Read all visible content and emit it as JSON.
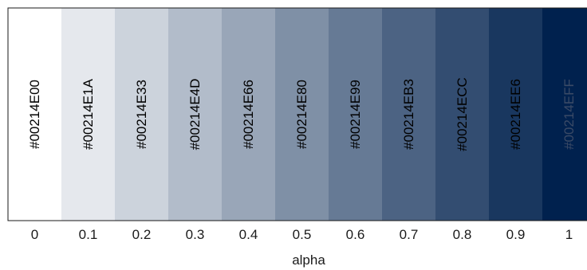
{
  "chart_data": {
    "type": "heatmap",
    "base_color": "#00214E",
    "xlabel": "alpha",
    "x": [
      0,
      0.1,
      0.2,
      0.3,
      0.4,
      0.5,
      0.6,
      0.7,
      0.8,
      0.9,
      1
    ],
    "tick_labels": [
      "0",
      "0.1",
      "0.2",
      "0.3",
      "0.4",
      "0.5",
      "0.6",
      "0.7",
      "0.8",
      "0.9",
      "1"
    ],
    "swatch_labels": [
      "#00214E00",
      "#00214E1A",
      "#00214E33",
      "#00214E4D",
      "#00214E66",
      "#00214E80",
      "#00214E99",
      "#00214EB3",
      "#00214ECC",
      "#00214EE6",
      "#00214EFF"
    ],
    "label_colors": [
      "#000000",
      "#000000",
      "#000000",
      "#000000",
      "#000000",
      "#000000",
      "#000000",
      "#000000",
      "#000000",
      "#000000",
      "#3a4a66"
    ]
  }
}
